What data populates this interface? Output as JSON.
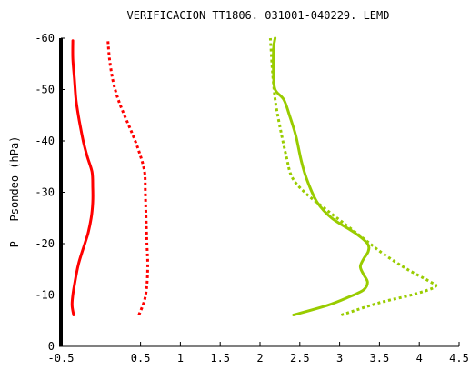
{
  "chart_data": {
    "type": "line",
    "title": "VERIFICACION TT1806. 031001-040229. LEMD",
    "xlabel": "",
    "ylabel": "P - Psondeo (hPa)",
    "xlim": [
      -0.5,
      4.5
    ],
    "ylim": [
      0,
      -60
    ],
    "xticks": [
      "-0.5",
      "0.5",
      "1",
      "1.5",
      "2",
      "2.5",
      "3",
      "3.5",
      "4",
      "4.5"
    ],
    "yticks": [
      "0",
      "-10",
      "-20",
      "-30",
      "-40",
      "-50",
      "-60"
    ],
    "xtick_values": [
      -0.5,
      0.5,
      1,
      1.5,
      2,
      2.5,
      3,
      3.5,
      4,
      4.5
    ],
    "ytick_values": [
      0,
      -10,
      -20,
      -30,
      -40,
      -50,
      -60
    ],
    "grid": false,
    "legend": "none",
    "series": [
      {
        "color": "#ff0000",
        "style": "solid",
        "points": [
          [
            -0.34,
            -6.1
          ],
          [
            -0.36,
            -8
          ],
          [
            -0.35,
            -10
          ],
          [
            -0.33,
            -12
          ],
          [
            -0.28,
            -16
          ],
          [
            -0.2,
            -20
          ],
          [
            -0.16,
            -22
          ],
          [
            -0.12,
            -25
          ],
          [
            -0.1,
            -28
          ],
          [
            -0.1,
            -31
          ],
          [
            -0.11,
            -34
          ],
          [
            -0.17,
            -37
          ],
          [
            -0.22,
            -40
          ],
          [
            -0.27,
            -44
          ],
          [
            -0.31,
            -48
          ],
          [
            -0.33,
            -52
          ],
          [
            -0.35,
            -56
          ],
          [
            -0.35,
            -59.5
          ]
        ]
      },
      {
        "color": "#ff0000",
        "style": "dotted",
        "points": [
          [
            0.48,
            -6.1
          ],
          [
            0.55,
            -9
          ],
          [
            0.58,
            -12
          ],
          [
            0.59,
            -16
          ],
          [
            0.58,
            -20
          ],
          [
            0.57,
            -25
          ],
          [
            0.56,
            -30
          ],
          [
            0.55,
            -34
          ],
          [
            0.48,
            -38
          ],
          [
            0.38,
            -42
          ],
          [
            0.27,
            -46
          ],
          [
            0.2,
            -49
          ],
          [
            0.15,
            -52
          ],
          [
            0.11,
            -56
          ],
          [
            0.09,
            -59.5
          ]
        ]
      },
      {
        "color": "#99cc00",
        "style": "solid",
        "points": [
          [
            2.42,
            -6.1
          ],
          [
            2.85,
            -8
          ],
          [
            3.1,
            -9.5
          ],
          [
            3.3,
            -11
          ],
          [
            3.35,
            -12.5
          ],
          [
            3.3,
            -14
          ],
          [
            3.26,
            -15.5
          ],
          [
            3.3,
            -17
          ],
          [
            3.36,
            -18.5
          ],
          [
            3.35,
            -20
          ],
          [
            3.2,
            -22
          ],
          [
            2.9,
            -25
          ],
          [
            2.72,
            -28
          ],
          [
            2.6,
            -32
          ],
          [
            2.52,
            -36
          ],
          [
            2.45,
            -41
          ],
          [
            2.37,
            -45
          ],
          [
            2.3,
            -48
          ],
          [
            2.19,
            -50
          ],
          [
            2.17,
            -53
          ],
          [
            2.17,
            -58
          ],
          [
            2.19,
            -60
          ]
        ]
      },
      {
        "color": "#99cc00",
        "style": "dotted",
        "points": [
          [
            3.02,
            -6.1
          ],
          [
            3.5,
            -8.5
          ],
          [
            3.9,
            -10
          ],
          [
            4.2,
            -11.6
          ],
          [
            4.12,
            -12.7
          ],
          [
            3.85,
            -15
          ],
          [
            3.55,
            -18
          ],
          [
            3.3,
            -21
          ],
          [
            3.05,
            -24
          ],
          [
            2.8,
            -27
          ],
          [
            2.56,
            -30
          ],
          [
            2.4,
            -33
          ],
          [
            2.33,
            -37
          ],
          [
            2.26,
            -42
          ],
          [
            2.2,
            -47
          ],
          [
            2.17,
            -51
          ],
          [
            2.15,
            -55
          ],
          [
            2.13,
            -60
          ]
        ]
      }
    ]
  }
}
